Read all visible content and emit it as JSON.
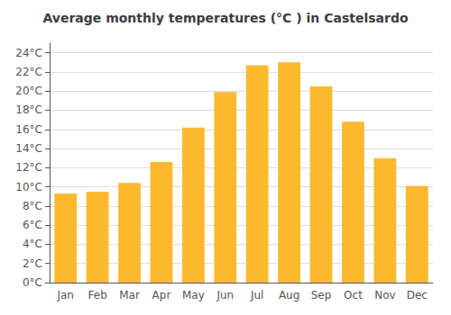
{
  "chart_data": {
    "type": "bar",
    "title": "Average monthly temperatures (°C ) in Castelsardo",
    "categories": [
      "Jan",
      "Feb",
      "Mar",
      "Apr",
      "May",
      "Jun",
      "Jul",
      "Aug",
      "Sep",
      "Oct",
      "Nov",
      "Dec"
    ],
    "values": [
      9.3,
      9.5,
      10.4,
      12.6,
      16.2,
      19.9,
      22.7,
      23.0,
      20.5,
      16.8,
      13.0,
      10.1
    ],
    "color": "#FDB92E",
    "ylim": [
      0,
      25
    ],
    "yticks": [
      {
        "value": 0,
        "label": "0°C"
      },
      {
        "value": 2,
        "label": "2°C"
      },
      {
        "value": 4,
        "label": "4°C"
      },
      {
        "value": 6,
        "label": "6°C"
      },
      {
        "value": 8,
        "label": "8°C"
      },
      {
        "value": 10,
        "label": "10°C"
      },
      {
        "value": 12,
        "label": "12°C"
      },
      {
        "value": 14,
        "label": "14°C"
      },
      {
        "value": 16,
        "label": "16°C"
      },
      {
        "value": 18,
        "label": "18°C"
      },
      {
        "value": 20,
        "label": "20°C"
      },
      {
        "value": 22,
        "label": "22°C"
      },
      {
        "value": 24,
        "label": "24°C"
      }
    ],
    "grid": true
  }
}
